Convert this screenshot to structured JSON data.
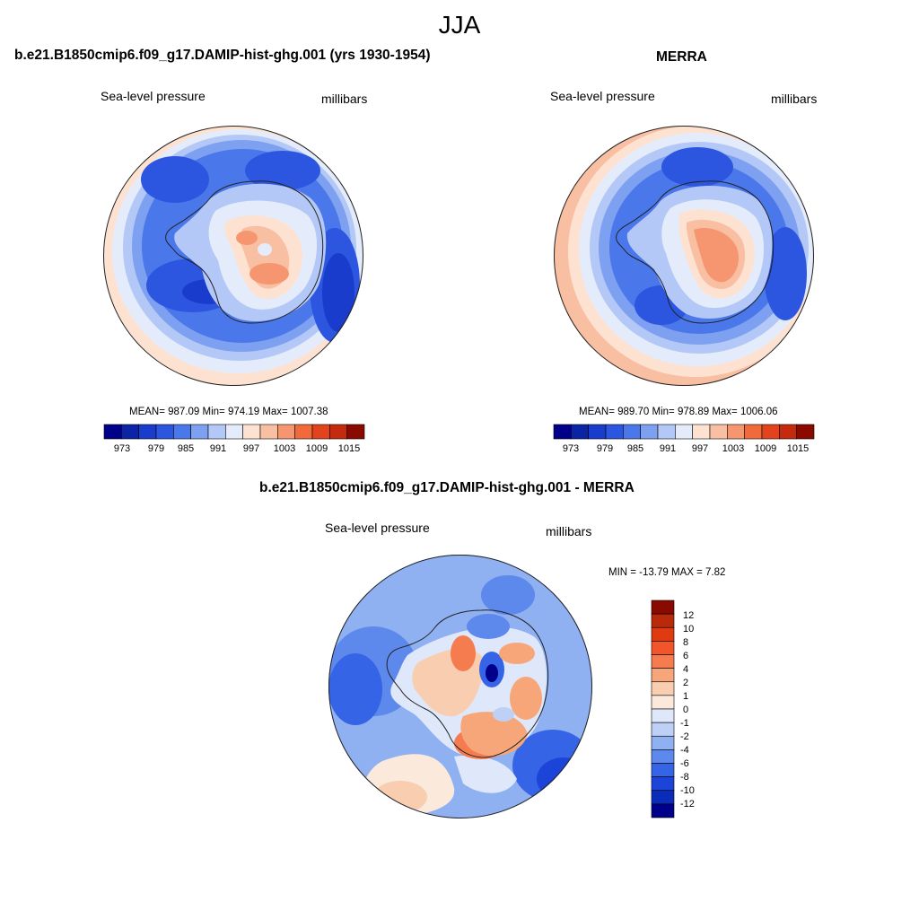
{
  "title": "JJA",
  "panels": [
    {
      "id": "model",
      "title": "b.e21.B1850cmip6.f09_g17.DAMIP-hist-ghg.001 (yrs 1930-1954)",
      "left_label": "Sea-level pressure",
      "right_label": "millibars",
      "stats": "MEAN= 987.09  Min= 974.19  Max= 1007.38",
      "colorbar_ticks": [
        "973",
        "979",
        "985",
        "991",
        "997",
        "1003",
        "1009",
        "1015"
      ]
    },
    {
      "id": "obs",
      "title": "MERRA",
      "left_label": "Sea-level pressure",
      "right_label": "millibars",
      "stats": "MEAN= 989.70  Min= 978.89  Max= 1006.06",
      "colorbar_ticks": [
        "973",
        "979",
        "985",
        "991",
        "997",
        "1003",
        "1009",
        "1015"
      ]
    },
    {
      "id": "diff",
      "title": "b.e21.B1850cmip6.f09_g17.DAMIP-hist-ghg.001 - MERRA",
      "left_label": "Sea-level pressure",
      "right_label": "millibars",
      "stats": "MIN = -13.79 MAX =   7.82",
      "colorbar_ticks": [
        "12",
        "10",
        "8",
        "6",
        "4",
        "2",
        "1",
        "0",
        "-1",
        "-2",
        "-4",
        "-6",
        "-8",
        "-10",
        "-12"
      ]
    }
  ],
  "colors": {
    "abs_scale": [
      "#00008b",
      "#0b24a6",
      "#1a3ccc",
      "#2c56e0",
      "#4a78ea",
      "#7ea0f0",
      "#b3c8f6",
      "#e4ecfb",
      "#fde2d2",
      "#f9bfa2",
      "#f59670",
      "#f06a3c",
      "#e2421c",
      "#c42a0e",
      "#8b0a00"
    ],
    "diff_scale": [
      "#8b0a00",
      "#b82a0a",
      "#df3a10",
      "#f2552a",
      "#f57c4e",
      "#f6a679",
      "#f8cdb0",
      "#fbe9dc",
      "#dfe8fa",
      "#bfd0f6",
      "#8fb0f1",
      "#5d88ec",
      "#3565e6",
      "#1c44d8",
      "#0a2cba",
      "#00008b"
    ]
  }
}
